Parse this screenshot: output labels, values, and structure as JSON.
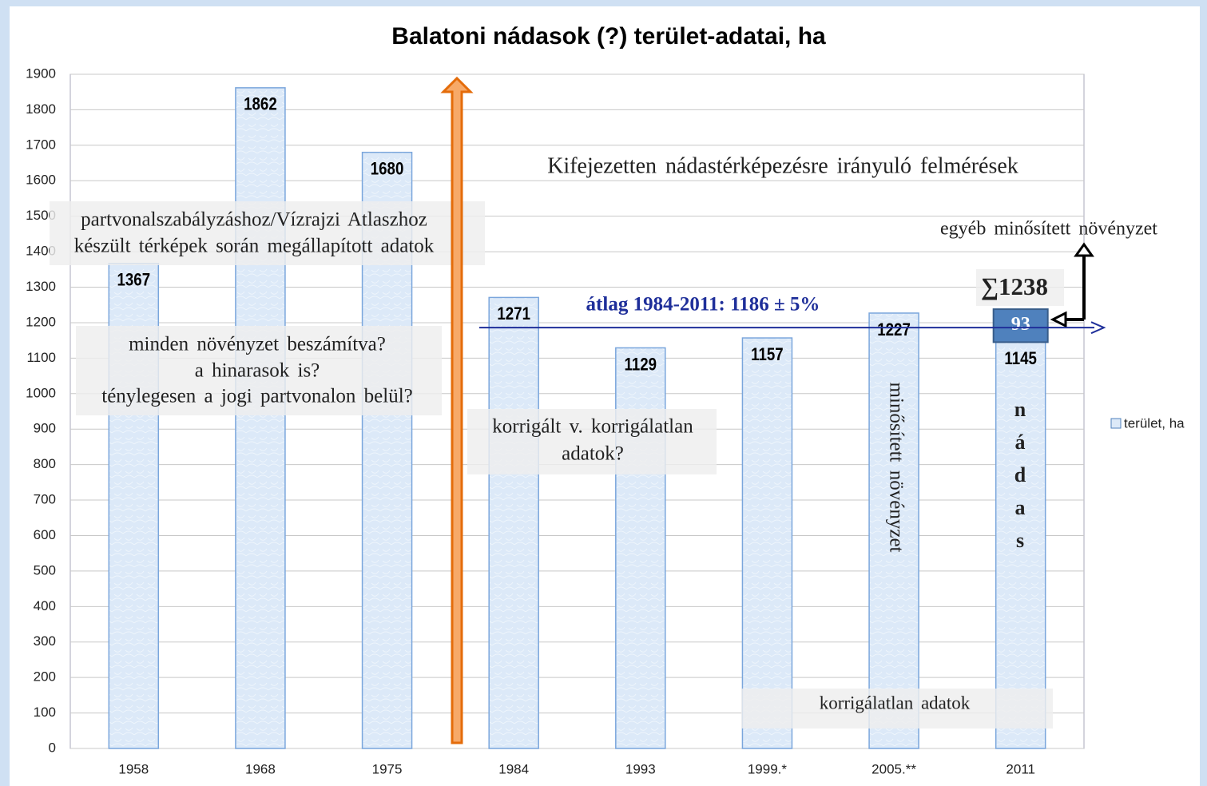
{
  "chart_data": {
    "type": "bar",
    "title": "Balatoni nádasok (?) terület-adatai, ha",
    "categories": [
      "1958",
      "1968",
      "1975",
      "1984",
      "1993",
      "1999.*",
      "2005.**",
      "2011"
    ],
    "series": [
      {
        "name": "terület, ha",
        "color": "#dce9f8",
        "values": [
          1367,
          1862,
          1680,
          1271,
          1129,
          1157,
          1227,
          1145
        ]
      },
      {
        "color": "#4f81bd",
        "values": [
          null,
          null,
          null,
          null,
          null,
          null,
          null,
          93
        ]
      }
    ],
    "ylim": [
      0,
      1900
    ],
    "yticks": [
      0,
      100,
      200,
      300,
      400,
      500,
      600,
      700,
      800,
      900,
      1000,
      1100,
      1200,
      1300,
      1400,
      1500,
      1600,
      1700,
      1800,
      1900
    ],
    "grid": true,
    "legend": "right",
    "mean_line": {
      "value": 1186,
      "label": "átlag 1984-2011: 1186 ± 5%",
      "color": "#1f2f9a"
    },
    "annotations": [
      "Kifejezetten nádastérképezésre irányuló felmérések",
      "partvonalszabályzáshoz/Vízrajzi Atlaszhoz",
      "készült térképek során megállapított adatok",
      "minden növényzet beszámítva?",
      "a hinarasok is?",
      "ténylegesen a jogi partvonalon belül?",
      "korrigált v. korrigálatlan",
      "adatok?",
      "egyéb minősített növényzet",
      "∑1238",
      "minősített növényzet",
      "korrigálatlan adatok"
    ],
    "vertical_letters": [
      "n",
      "á",
      "d",
      "a",
      "s"
    ]
  }
}
